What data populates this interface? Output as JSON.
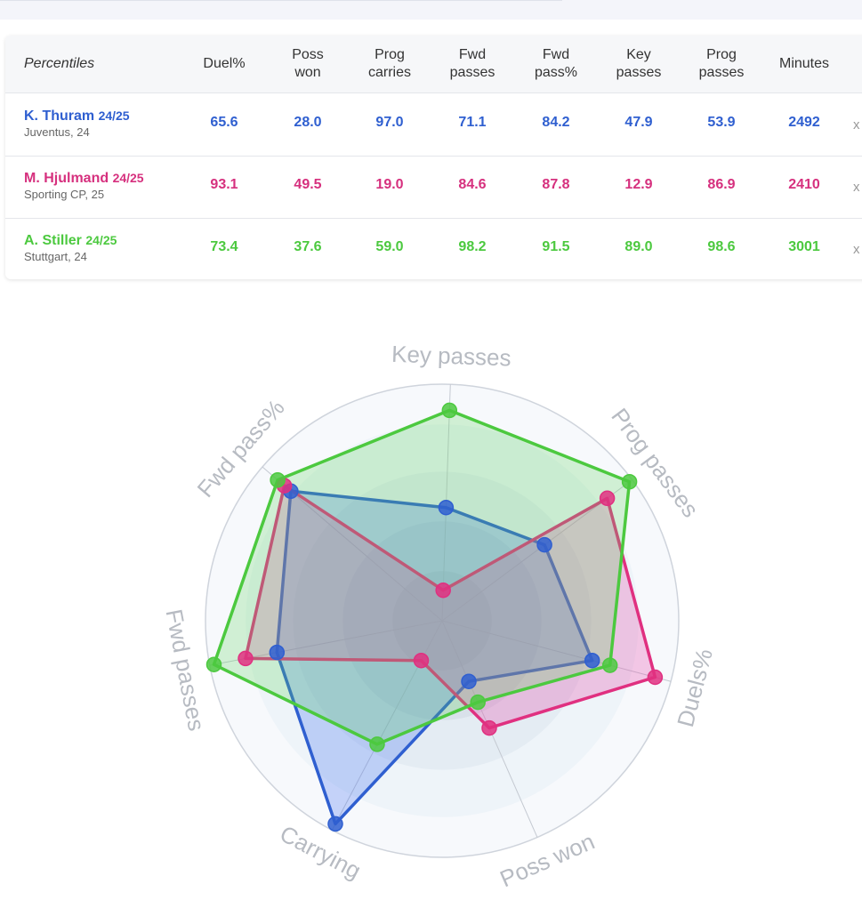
{
  "table": {
    "header_label": "Percentiles",
    "columns": [
      "Duel%",
      "Poss\nwon",
      "Prog\ncarries",
      "Fwd\npasses",
      "Fwd\npass%",
      "Key\npasses",
      "Prog\npasses",
      "Minutes"
    ],
    "remove_label": "x",
    "players": [
      {
        "name": "K. Thuram",
        "season": "24/25",
        "meta": "Juventus, 24",
        "color": "#2f5fd0",
        "values": [
          "65.6",
          "28.0",
          "97.0",
          "71.1",
          "84.2",
          "47.9",
          "53.9",
          "2492"
        ]
      },
      {
        "name": "M. Hjulmand",
        "season": "24/25",
        "meta": "Sporting CP, 25",
        "color": "#d6307e",
        "values": [
          "93.1",
          "49.5",
          "19.0",
          "84.6",
          "87.8",
          "12.9",
          "86.9",
          "2410"
        ]
      },
      {
        "name": "A. Stiller",
        "season": "24/25",
        "meta": "Stuttgart, 24",
        "color": "#4cc93f",
        "values": [
          "73.4",
          "37.6",
          "59.0",
          "98.2",
          "91.5",
          "89.0",
          "98.6",
          "3001"
        ]
      }
    ]
  },
  "chart_data": {
    "type": "radar",
    "axes": [
      "Key passes",
      "Prog passes",
      "Duels%",
      "Poss won",
      "Carrying",
      "Fwd passes",
      "Fwd pass%"
    ],
    "range": [
      0,
      100
    ],
    "series": [
      {
        "name": "K. Thuram",
        "color": "#2f5fd0",
        "fill": "rgba(64,110,240,0.28)",
        "values": [
          47.9,
          53.9,
          65.6,
          28.0,
          97.0,
          71.1,
          84.2
        ]
      },
      {
        "name": "M. Hjulmand",
        "color": "#e03080",
        "fill": "rgba(230,70,170,0.28)",
        "values": [
          12.9,
          86.9,
          93.1,
          49.5,
          19.0,
          84.6,
          87.8
        ]
      },
      {
        "name": "A. Stiller",
        "color": "#4cc93f",
        "fill": "rgba(90,210,90,0.25)",
        "values": [
          89.0,
          98.6,
          73.4,
          37.6,
          59.0,
          98.2,
          91.5
        ]
      }
    ]
  }
}
